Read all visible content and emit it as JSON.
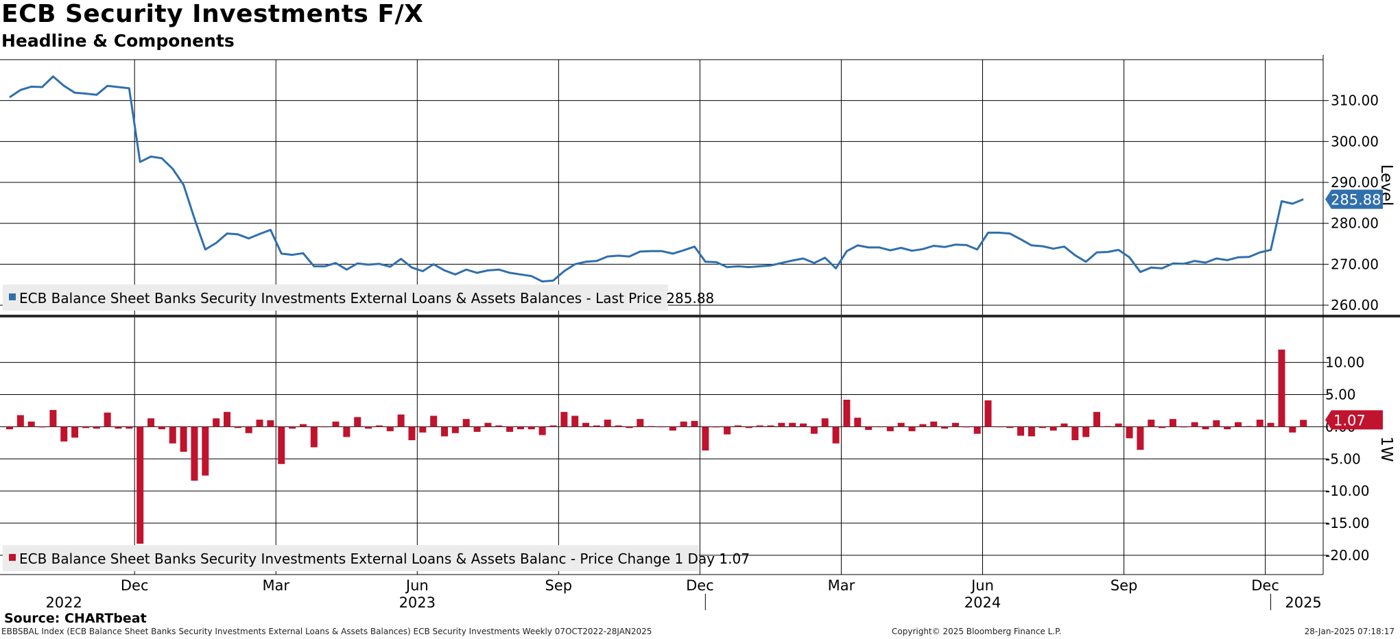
{
  "title": "ECB Security Investments F/X",
  "subtitle": "Headline & Components",
  "source": "Source: CHARTbeat",
  "footer": {
    "left": "EBBSBAL Index (ECB Balance Sheet Banks Security Investments External Loans & Assets Balances) ECB Security Investments  Weekly 07OCT2022-28JAN2025",
    "copyright": "Copyright© 2025 Bloomberg Finance L.P.",
    "timestamp": "28-Jan-2025 07:18:17"
  },
  "colors": {
    "level": "#2f6fad",
    "change": "#c0132d",
    "grid": "#000000"
  },
  "chart_data": [
    {
      "type": "line",
      "axis_label": "Level",
      "ylim": [
        257.5,
        320
      ],
      "yticks": [
        260,
        270,
        280,
        290,
        300,
        310
      ],
      "ytick_labels": [
        "260.00",
        "270.00",
        "280.00",
        "290.00",
        "300.00",
        "310.00"
      ],
      "last_value_label": "285.88",
      "legend": "ECB Balance Sheet Banks Security Investments External Loans & Assets Balances - Last Price 285.88",
      "series": [
        {
          "name": "ECB Balance Sheet Banks Security Investments External Loans & Assets Balances",
          "values": [
            310.8,
            312.6,
            313.4,
            313.3,
            315.9,
            313.6,
            311.9,
            311.7,
            311.4,
            313.6,
            313.3,
            313.0,
            295.0,
            296.3,
            295.9,
            293.3,
            289.4,
            281.2,
            273.6,
            275.2,
            277.5,
            277.3,
            276.3,
            277.4,
            278.4,
            272.6,
            272.3,
            272.7,
            269.5,
            269.5,
            270.3,
            268.7,
            270.2,
            269.9,
            270.1,
            269.4,
            271.3,
            269.2,
            268.3,
            270.0,
            268.5,
            267.5,
            268.7,
            267.9,
            268.5,
            268.7,
            267.9,
            267.5,
            267.1,
            265.8,
            266.0,
            268.3,
            270.0,
            270.6,
            270.8,
            271.9,
            272.1,
            271.9,
            273.1,
            273.2,
            273.2,
            272.6,
            273.4,
            274.3,
            270.6,
            270.5,
            269.3,
            269.5,
            269.3,
            269.5,
            269.7,
            270.3,
            270.9,
            271.4,
            270.3,
            271.6,
            269.0,
            273.2,
            274.6,
            274.1,
            274.1,
            273.4,
            274.0,
            273.3,
            273.7,
            274.5,
            274.2,
            274.8,
            274.7,
            273.6,
            277.7,
            277.7,
            277.5,
            276.1,
            274.6,
            274.4,
            273.8,
            274.3,
            272.2,
            270.6,
            272.9,
            273.0,
            273.5,
            271.7,
            268.1,
            269.2,
            269.0,
            270.2,
            270.1,
            270.8,
            270.4,
            271.4,
            271.0,
            271.7,
            271.8,
            272.9,
            273.5,
            285.4,
            284.8,
            285.88
          ]
        }
      ]
    },
    {
      "type": "bar",
      "axis_label": "1W",
      "ylim": [
        -23,
        17
      ],
      "yticks": [
        -20,
        -15,
        -10,
        -5,
        0,
        5,
        10
      ],
      "ytick_labels": [
        "-20.00",
        "-15.00",
        "-10.00",
        "-5.00",
        "0.00",
        "5.00",
        "10.00"
      ],
      "last_value_label": "1.07",
      "legend": "ECB Balance Sheet Banks Security Investments External Loans & Assets Balanc - Price Change 1 Day 1.07",
      "series": [
        {
          "name": "ECB Balance Sheet Banks Security Investments External Loans & Assets Balanc",
          "values": [
            -0.4,
            1.8,
            0.8,
            -0.1,
            2.6,
            -2.3,
            -1.7,
            -0.2,
            -0.3,
            2.2,
            -0.3,
            -0.3,
            -18.2,
            1.3,
            -0.4,
            -2.6,
            -3.9,
            -8.4,
            -7.6,
            1.3,
            2.3,
            -0.2,
            -1.0,
            1.1,
            1.0,
            -5.8,
            -0.3,
            0.4,
            -3.2,
            0.0,
            0.8,
            -1.6,
            1.5,
            -0.3,
            0.2,
            -0.7,
            1.9,
            -2.1,
            -0.9,
            1.7,
            -1.5,
            -1.0,
            1.2,
            -0.8,
            0.6,
            0.2,
            -0.8,
            -0.4,
            -0.4,
            -1.3,
            0.2,
            2.3,
            1.7,
            0.6,
            0.2,
            1.1,
            0.2,
            -0.2,
            1.2,
            0.1,
            0.0,
            -0.6,
            0.8,
            0.9,
            -3.7,
            -0.1,
            -1.2,
            0.2,
            -0.2,
            0.2,
            0.2,
            0.6,
            0.6,
            0.5,
            -1.1,
            1.3,
            -2.6,
            4.2,
            1.4,
            -0.5,
            0.0,
            -0.7,
            0.6,
            -0.7,
            0.4,
            0.8,
            -0.3,
            0.6,
            -0.1,
            -1.1,
            4.1,
            0.0,
            -0.2,
            -1.4,
            -1.5,
            -0.2,
            -0.6,
            0.5,
            -2.1,
            -1.6,
            2.3,
            0.1,
            0.5,
            -1.8,
            -3.6,
            1.1,
            -0.2,
            1.2,
            -0.1,
            0.7,
            -0.4,
            1.0,
            -0.4,
            0.7,
            0.1,
            1.1,
            0.6,
            12.0,
            -0.9,
            1.07
          ]
        }
      ]
    }
  ],
  "x_axis": {
    "months": [
      {
        "label": "Dec",
        "week": 12
      },
      {
        "label": "Mar",
        "week": 25
      },
      {
        "label": "Jun",
        "week": 38
      },
      {
        "label": "Sep",
        "week": 51
      },
      {
        "label": "Dec",
        "week": 64
      },
      {
        "label": "Mar",
        "week": 77
      },
      {
        "label": "Jun",
        "week": 90
      },
      {
        "label": "Sep",
        "week": 103
      },
      {
        "label": "Dec",
        "week": 116
      }
    ],
    "years": [
      {
        "label": "2022",
        "week": 5.5
      },
      {
        "label": "2023",
        "week": 38
      },
      {
        "label": "2024",
        "week": 90
      },
      {
        "label": "2025",
        "week": 119.5
      }
    ],
    "year_boundaries": [
      64.5,
      116.5
    ]
  }
}
